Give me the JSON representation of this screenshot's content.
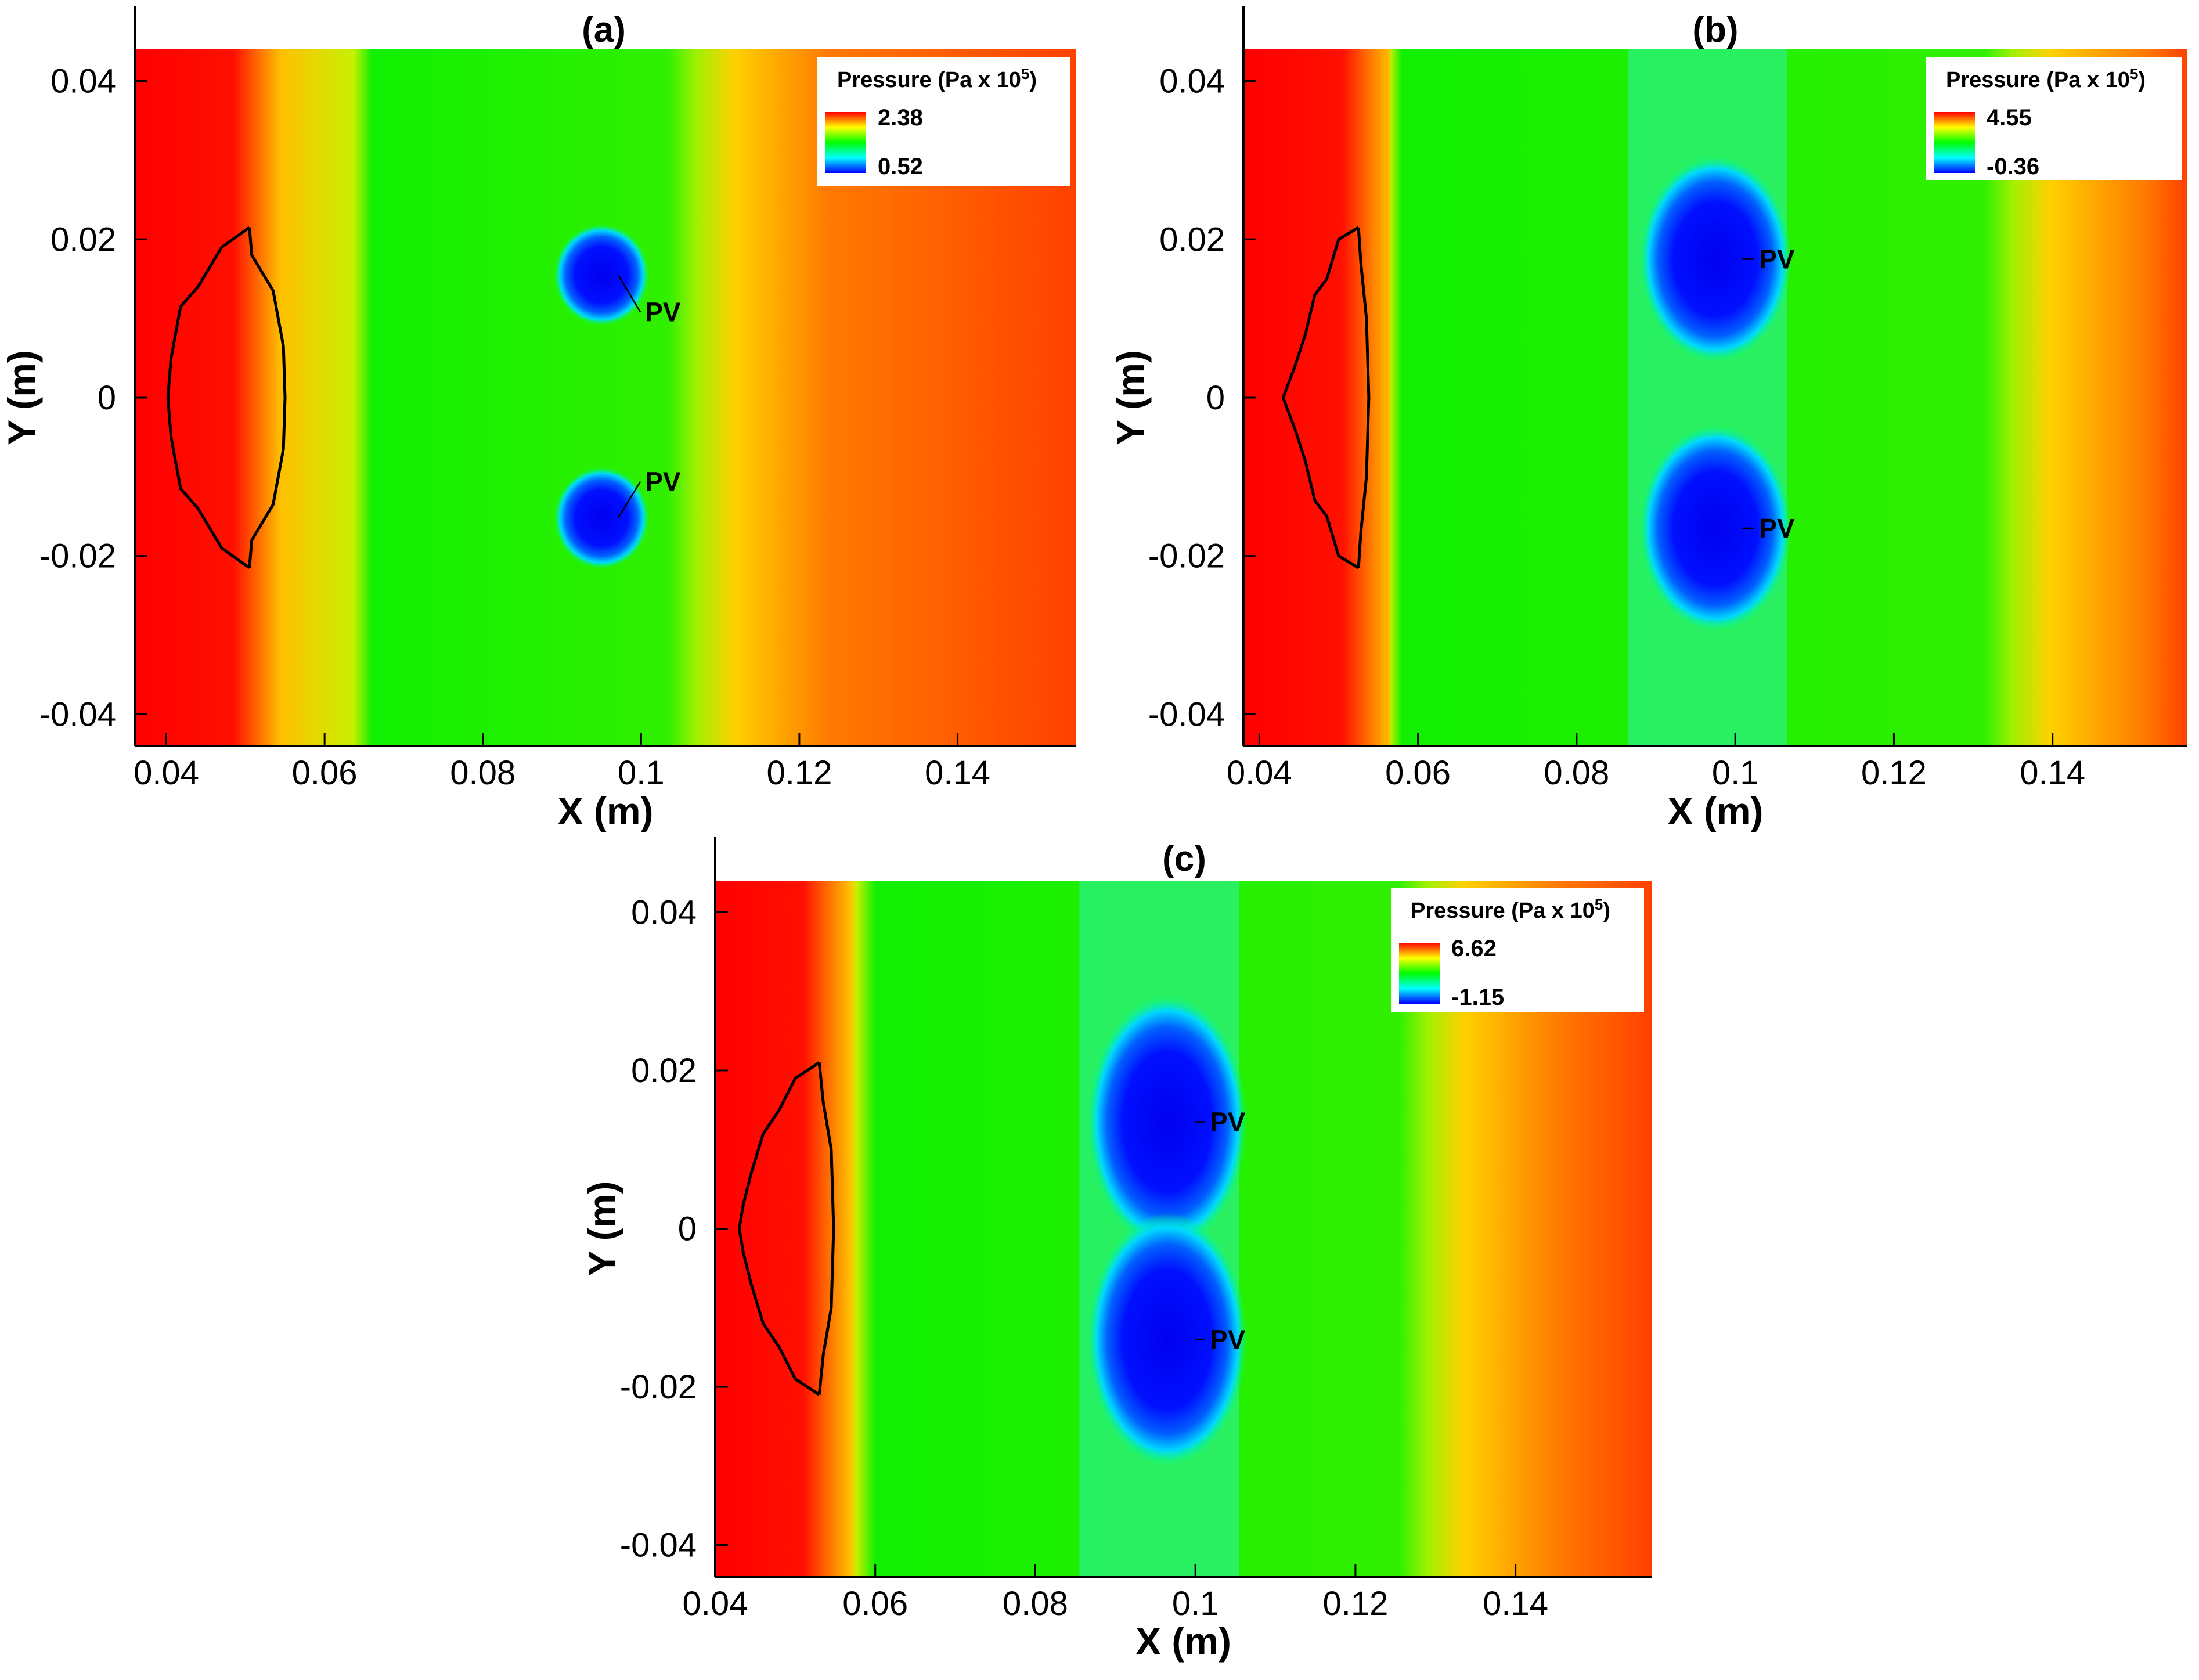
{
  "chart_data": [
    {
      "type": "contour",
      "panel_label": "(a)",
      "xlabel": "X (m)",
      "ylabel": "Y (m)",
      "xlim": [
        0.036,
        0.155
      ],
      "ylim": [
        -0.044,
        0.044
      ],
      "xticks": [
        0.04,
        0.06,
        0.08,
        0.1,
        0.12,
        0.14
      ],
      "xtick_labels": [
        "0.04",
        "0.06",
        "0.08",
        "0.1",
        "0.12",
        "0.14"
      ],
      "yticks": [
        0.04,
        0.02,
        0,
        -0.02,
        -0.04
      ],
      "ytick_labels": [
        "0.04",
        "0.02",
        "0",
        "-0.02",
        "-0.04"
      ],
      "legend": {
        "title": "Pressure (Pa x 10",
        "title_exponent": "5",
        "title_close": ")",
        "max_label": "2.38",
        "min_label": "0.52",
        "max": 2.38,
        "min": 0.52
      },
      "wave_x": 0.107,
      "green_left_x": 0.066,
      "vortices": [
        {
          "label": "PV",
          "x": 0.095,
          "y": 0.0155,
          "rx": 0.003,
          "ry": 0.0032,
          "label_x": 0.1005,
          "label_y": 0.0108
        },
        {
          "label": "PV",
          "x": 0.095,
          "y": -0.0152,
          "rx": 0.003,
          "ry": 0.0032,
          "label_x": 0.1005,
          "label_y": -0.0106
        }
      ],
      "outline_outer": [
        [
          0.0505,
          0.0215
        ],
        [
          0.047,
          0.019
        ],
        [
          0.044,
          0.014
        ],
        [
          0.0418,
          0.0115
        ],
        [
          0.0406,
          0.005
        ],
        [
          0.0402,
          0
        ],
        [
          0.0406,
          -0.005
        ],
        [
          0.0418,
          -0.0115
        ],
        [
          0.044,
          -0.014
        ],
        [
          0.047,
          -0.019
        ],
        [
          0.0505,
          -0.0215
        ]
      ],
      "outline_inner": [
        [
          0.0505,
          0.0215
        ],
        [
          0.0508,
          0.018
        ],
        [
          0.0535,
          0.0135
        ],
        [
          0.0548,
          0.0065
        ],
        [
          0.055,
          0
        ],
        [
          0.0548,
          -0.0065
        ],
        [
          0.0535,
          -0.0135
        ],
        [
          0.0508,
          -0.018
        ],
        [
          0.0505,
          -0.0215
        ]
      ]
    },
    {
      "type": "contour",
      "panel_label": "(b)",
      "xlabel": "X (m)",
      "ylabel": "Y (m)",
      "xlim": [
        0.038,
        0.157
      ],
      "ylim": [
        -0.044,
        0.044
      ],
      "xticks": [
        0.04,
        0.06,
        0.08,
        0.1,
        0.12,
        0.14
      ],
      "xtick_labels": [
        "0.04",
        "0.06",
        "0.08",
        "0.1",
        "0.12",
        "0.14"
      ],
      "yticks": [
        0.04,
        0.02,
        0,
        -0.02,
        -0.04
      ],
      "ytick_labels": [
        "0.04",
        "0.02",
        "0",
        "-0.02",
        "-0.04"
      ],
      "legend": {
        "title": "Pressure (Pa x 10",
        "title_exponent": "5",
        "title_close": ")",
        "max_label": "4.55",
        "min_label": "-0.36",
        "max": 4.55,
        "min": -0.36
      },
      "wave_x": 0.135,
      "green_left_x": 0.058,
      "vortices": [
        {
          "label": "PV",
          "x": 0.0975,
          "y": 0.0175,
          "rx": 0.0048,
          "ry": 0.0065,
          "label_x": 0.103,
          "label_y": 0.0175
        },
        {
          "label": "PV",
          "x": 0.0975,
          "y": -0.0165,
          "rx": 0.0048,
          "ry": 0.0065,
          "label_x": 0.103,
          "label_y": -0.0165
        }
      ],
      "outline_outer": [
        [
          0.0525,
          0.0215
        ],
        [
          0.05,
          0.02
        ],
        [
          0.0485,
          0.015
        ],
        [
          0.047,
          0.013
        ],
        [
          0.0458,
          0.008
        ],
        [
          0.0445,
          0.004
        ],
        [
          0.043,
          0
        ],
        [
          0.0445,
          -0.004
        ],
        [
          0.0458,
          -0.008
        ],
        [
          0.047,
          -0.013
        ],
        [
          0.0485,
          -0.015
        ],
        [
          0.05,
          -0.02
        ],
        [
          0.0525,
          -0.0215
        ]
      ],
      "outline_inner": [
        [
          0.0525,
          0.0215
        ],
        [
          0.0528,
          0.017
        ],
        [
          0.0535,
          0.01
        ],
        [
          0.0538,
          0
        ],
        [
          0.0535,
          -0.01
        ],
        [
          0.0528,
          -0.017
        ],
        [
          0.0525,
          -0.0215
        ]
      ]
    },
    {
      "type": "contour",
      "panel_label": "(c)",
      "xlabel": "X (m)",
      "ylabel": "Y (m)",
      "xlim": [
        0.04,
        0.157
      ],
      "ylim": [
        -0.044,
        0.044
      ],
      "xticks": [
        0.04,
        0.06,
        0.08,
        0.1,
        0.12,
        0.14
      ],
      "xtick_labels": [
        "0.04",
        "0.06",
        "0.08",
        "0.1",
        "0.12",
        "0.14"
      ],
      "yticks": [
        0.04,
        0.02,
        0,
        -0.02,
        -0.04
      ],
      "ytick_labels": [
        "0.04",
        "0.02",
        "0",
        "-0.02",
        "-0.04"
      ],
      "legend": {
        "title": "Pressure (Pa x 10",
        "title_exponent": "5",
        "title_close": ")",
        "max_label": "6.62",
        "min_label": "-1.15",
        "max": 6.62,
        "min": -1.15
      },
      "wave_x": 0.129,
      "green_left_x": 0.06,
      "vortices": [
        {
          "label": "PV",
          "x": 0.0965,
          "y": 0.0135,
          "rx": 0.005,
          "ry": 0.008,
          "label_x": 0.1018,
          "label_y": 0.0135
        },
        {
          "label": "PV",
          "x": 0.0965,
          "y": -0.014,
          "rx": 0.005,
          "ry": 0.008,
          "label_x": 0.1018,
          "label_y": -0.014
        }
      ],
      "outline_outer": [
        [
          0.053,
          0.021
        ],
        [
          0.05,
          0.019
        ],
        [
          0.048,
          0.015
        ],
        [
          0.046,
          0.012
        ],
        [
          0.0445,
          0.007
        ],
        [
          0.0435,
          0.003
        ],
        [
          0.043,
          0
        ],
        [
          0.0435,
          -0.003
        ],
        [
          0.0445,
          -0.007
        ],
        [
          0.046,
          -0.012
        ],
        [
          0.048,
          -0.015
        ],
        [
          0.05,
          -0.019
        ],
        [
          0.053,
          -0.021
        ]
      ],
      "outline_inner": [
        [
          0.053,
          0.021
        ],
        [
          0.0535,
          0.016
        ],
        [
          0.0545,
          0.01
        ],
        [
          0.0548,
          0
        ],
        [
          0.0545,
          -0.01
        ],
        [
          0.0535,
          -0.016
        ],
        [
          0.053,
          -0.021
        ]
      ]
    }
  ]
}
